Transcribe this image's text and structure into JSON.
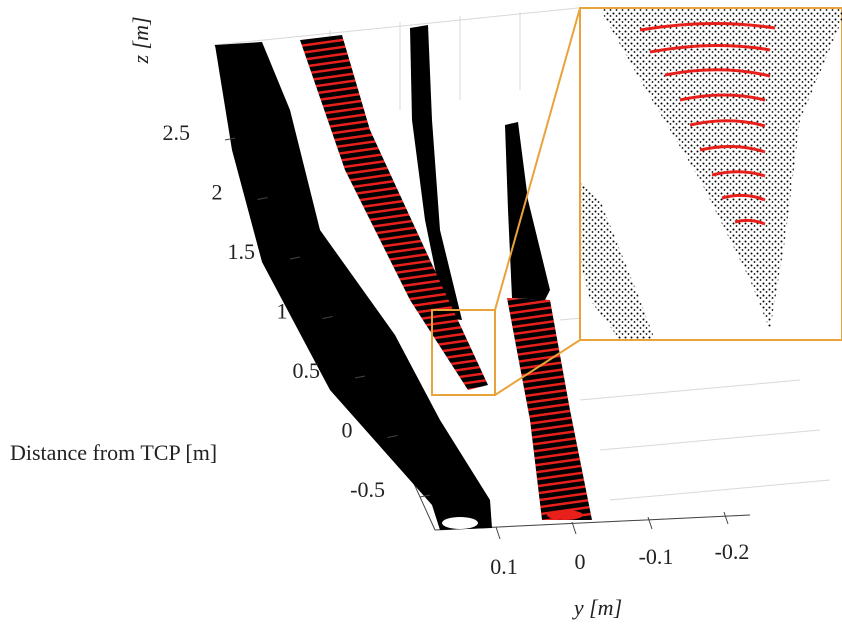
{
  "chart_data": {
    "type": "scatter3d",
    "z_label": "z [m]",
    "distance_label": "Distance from TCP [m]",
    "zticks": [
      -0.5,
      0,
      0.5,
      1,
      1.5,
      2,
      2.5
    ],
    "ylabel": "y [m]",
    "yticks": [
      0.1,
      0,
      -0.1,
      -0.2
    ],
    "highlight_color": "#e8a33a",
    "stripe_color": "#e8201c"
  }
}
